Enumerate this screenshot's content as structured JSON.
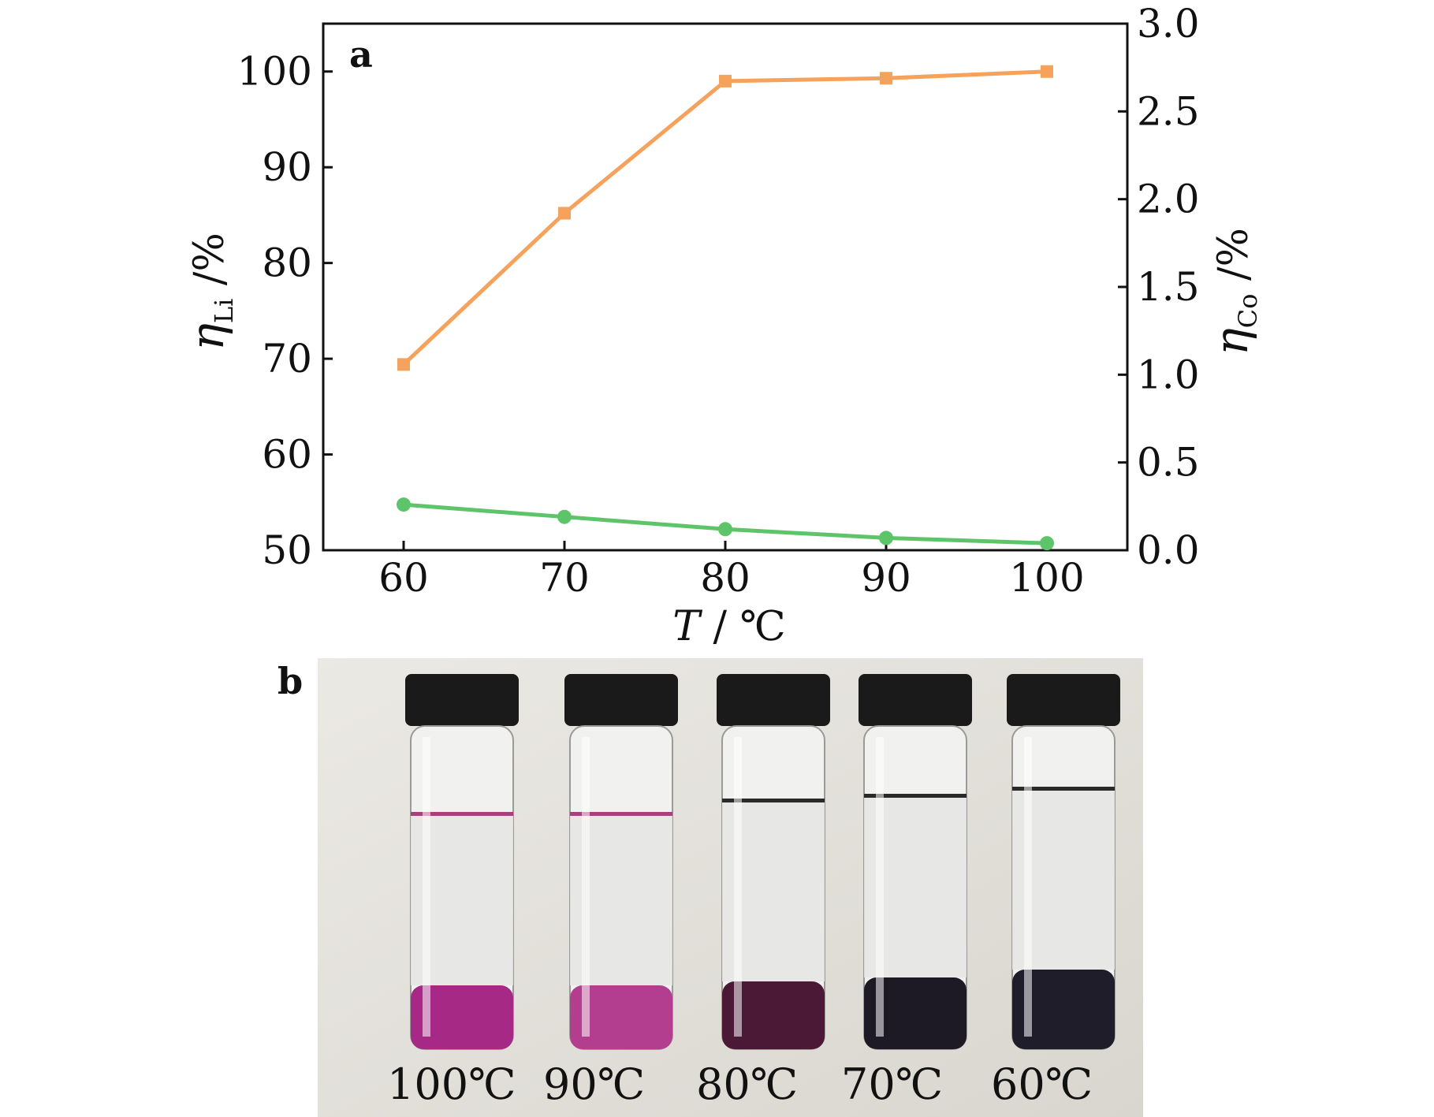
{
  "panel_labels": {
    "a": "a",
    "b": "b"
  },
  "chart_data": {
    "type": "line",
    "x": [
      60,
      70,
      80,
      90,
      100
    ],
    "xticks": [
      "60",
      "70",
      "80",
      "90",
      "100"
    ],
    "xlim": [
      55,
      105
    ],
    "xlabel": {
      "italic": "T",
      "rest": " / ℃"
    },
    "ylim_left": [
      50,
      105
    ],
    "yticks_left": [
      "50",
      "60",
      "70",
      "80",
      "90",
      "100"
    ],
    "ylabel_left": {
      "main": "η",
      "sub": "Li",
      "rest": " /%"
    },
    "ylim_right": [
      0.0,
      3.0
    ],
    "yticks_right": [
      "0.0",
      "0.5",
      "1.0",
      "1.5",
      "2.0",
      "2.5",
      "3.0"
    ],
    "ylabel_right": {
      "main": "η",
      "sub": "Co",
      "rest": " /%"
    },
    "grid": false,
    "series": [
      {
        "axis": "left",
        "marker": "square",
        "color": "#F5A25C",
        "values": [
          69.4,
          85.2,
          99.0,
          99.3,
          100.0
        ]
      },
      {
        "axis": "right",
        "marker": "circle",
        "color": "#5DC46A",
        "values": [
          0.26,
          0.19,
          0.12,
          0.07,
          0.04
        ]
      }
    ]
  },
  "photo": {
    "vial_labels": [
      "100℃",
      "90℃",
      "80℃",
      "70℃",
      "60℃"
    ],
    "vial_colors": [
      "#a62a85",
      "#b33e8f",
      "#4b1836",
      "#1d1a26",
      "#1f1d2a"
    ]
  }
}
